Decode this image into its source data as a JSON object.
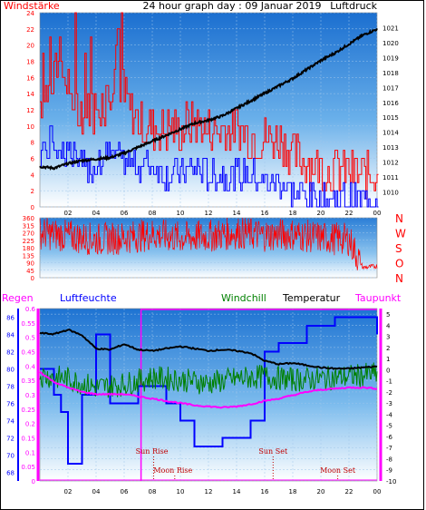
{
  "chart_data": [
    {
      "type": "line",
      "title": "24 hour graph day : 09 Januar 2019",
      "left_label": "Windstärke",
      "right_label": "Luftdruck",
      "x_ticks": [
        "02",
        "04",
        "06",
        "08",
        "10",
        "12",
        "14",
        "16",
        "18",
        "20",
        "22",
        "00"
      ],
      "x_range": [
        0,
        24
      ],
      "y_left": {
        "range": [
          0,
          24
        ],
        "ticks": [
          0,
          2,
          4,
          6,
          8,
          10,
          12,
          14,
          16,
          18,
          20,
          22,
          24
        ]
      },
      "y_right": {
        "range": [
          1009,
          1022
        ],
        "ticks": [
          1010,
          1011,
          1012,
          1013,
          1014,
          1015,
          1016,
          1017,
          1018,
          1019,
          1020,
          1021
        ]
      },
      "series": [
        {
          "name": "",
          "color": "#ff0000",
          "axis": "left",
          "x": [
            0,
            1,
            2,
            3,
            4,
            5,
            6,
            7,
            8,
            9,
            10,
            11,
            12,
            13,
            14,
            15,
            16,
            17,
            18,
            19,
            20,
            21,
            22,
            23,
            24
          ],
          "values": [
            12,
            16,
            14,
            11,
            11,
            14,
            13,
            10,
            9,
            9,
            9,
            10,
            9,
            9,
            9,
            8,
            8,
            8,
            6,
            5,
            4,
            4,
            4,
            3,
            4
          ]
        },
        {
          "name": "",
          "color": "#0000ff",
          "axis": "left",
          "x": [
            0,
            1,
            2,
            3,
            4,
            5,
            6,
            7,
            8,
            9,
            10,
            11,
            12,
            13,
            14,
            15,
            16,
            17,
            18,
            19,
            20,
            21,
            22,
            23,
            24
          ],
          "values": [
            7,
            8,
            7,
            5,
            5,
            7,
            6,
            5,
            5,
            4,
            4,
            5,
            4,
            4,
            4,
            4,
            3,
            3,
            2,
            1,
            1,
            1,
            1,
            1,
            1
          ]
        },
        {
          "name": "",
          "color": "#000000",
          "axis": "right",
          "x": [
            0,
            1,
            2,
            3,
            4,
            5,
            6,
            7,
            8,
            9,
            10,
            11,
            12,
            13,
            14,
            15,
            16,
            17,
            18,
            19,
            20,
            21,
            22,
            23,
            24
          ],
          "values": [
            1011.7,
            1011.6,
            1011.9,
            1012.1,
            1012.2,
            1012.3,
            1012.6,
            1013.0,
            1013.4,
            1013.8,
            1014.2,
            1014.6,
            1014.8,
            1015.1,
            1015.6,
            1016.1,
            1016.6,
            1017.1,
            1017.6,
            1018.2,
            1018.8,
            1019.3,
            1019.9,
            1020.5,
            1020.9
          ]
        }
      ]
    },
    {
      "type": "line",
      "title": "",
      "right_labels": [
        "N",
        "W",
        "S",
        "O",
        "N"
      ],
      "x_range": [
        0,
        24
      ],
      "y_left": {
        "range": [
          0,
          360
        ],
        "ticks": [
          0,
          45,
          90,
          135,
          180,
          225,
          270,
          315,
          360
        ]
      },
      "series": [
        {
          "name": "",
          "color": "#ff0000",
          "axis": "left",
          "x": [
            0,
            2,
            4,
            6,
            8,
            10,
            12,
            14,
            16,
            18,
            20,
            22,
            23,
            24
          ],
          "values": [
            270,
            250,
            230,
            240,
            260,
            240,
            250,
            270,
            255,
            260,
            240,
            230,
            60,
            70
          ]
        }
      ]
    },
    {
      "type": "line",
      "title": "",
      "labels": [
        "Regen",
        "Luftfeuchte",
        "Windchill",
        "Temperatur",
        "Taupunkt"
      ],
      "x_ticks": [
        "02",
        "04",
        "06",
        "08",
        "10",
        "12",
        "14",
        "16",
        "18",
        "20",
        "22",
        "00"
      ],
      "x_range": [
        0,
        24
      ],
      "y_regen": {
        "range": [
          0,
          0.6
        ],
        "ticks": [
          "0",
          "0.05",
          "0.1",
          "0.15",
          "0.2",
          "0.25",
          "0.3",
          "0.35",
          "0.4",
          "0.45",
          "0.5",
          "0.55",
          "0.6"
        ]
      },
      "y_humidity": {
        "range": [
          67,
          87
        ],
        "ticks": [
          68,
          70,
          72,
          74,
          76,
          78,
          80,
          82,
          84,
          86
        ]
      },
      "y_temp": {
        "range": [
          -10,
          5.5
        ],
        "ticks": [
          -10,
          -9,
          -8,
          -7,
          -6,
          -5,
          -4,
          -3,
          -2,
          -1,
          0,
          1,
          2,
          3,
          4,
          5
        ]
      },
      "series": [
        {
          "name": "Luftfeuchte",
          "color": "#0000ff",
          "axis": "humidity",
          "x": [
            0,
            1,
            1.5,
            2,
            3,
            4,
            5,
            6,
            7,
            8,
            9,
            10,
            11,
            12,
            13,
            14,
            15,
            16,
            17,
            18,
            19,
            20,
            21,
            22,
            23,
            24
          ],
          "values": [
            80,
            77,
            75,
            69,
            77,
            84,
            76,
            76,
            78,
            78,
            76,
            74,
            71,
            71,
            72,
            72,
            74,
            82,
            83,
            83,
            85,
            85,
            86,
            86,
            86,
            84
          ]
        },
        {
          "name": "Windchill",
          "color": "#008000",
          "axis": "temp",
          "x": [
            0,
            2,
            4,
            6,
            8,
            10,
            12,
            14,
            16,
            18,
            20,
            22,
            24
          ],
          "values": [
            -0.5,
            -0.8,
            -1.6,
            -1.3,
            -0.7,
            -0.9,
            -1.2,
            -0.8,
            -0.6,
            -0.9,
            -0.8,
            -0.6,
            -0.4
          ]
        },
        {
          "name": "Temperatur",
          "color": "#000000",
          "axis": "temp",
          "x": [
            0,
            1,
            2,
            3,
            4,
            5,
            6,
            7,
            8,
            9,
            10,
            11,
            12,
            13,
            14,
            15,
            16,
            17,
            18,
            19,
            20,
            21,
            22,
            23,
            24
          ],
          "values": [
            3.3,
            3.2,
            3.6,
            3.1,
            1.9,
            1.8,
            2.3,
            1.8,
            1.7,
            1.9,
            2.1,
            1.9,
            1.7,
            1.8,
            1.7,
            1.5,
            0.8,
            0.5,
            0.6,
            0.4,
            0.2,
            0.1,
            0.1,
            0.2,
            0.3
          ]
        },
        {
          "name": "Taupunkt",
          "color": "#ff00ff",
          "axis": "temp",
          "x": [
            0,
            1,
            2,
            3,
            4,
            5,
            6,
            7,
            8,
            9,
            10,
            11,
            12,
            13,
            14,
            15,
            16,
            17,
            18,
            19,
            20,
            21,
            22,
            23,
            24
          ],
          "values": [
            -0.2,
            -1.1,
            -1.6,
            -2.0,
            -2.2,
            -2.2,
            -2.2,
            -2.4,
            -2.6,
            -2.8,
            -3.0,
            -3.2,
            -3.3,
            -3.4,
            -3.3,
            -3.1,
            -2.8,
            -2.6,
            -2.3,
            -2.0,
            -1.8,
            -1.7,
            -1.6,
            -1.6,
            -1.7
          ]
        },
        {
          "name": "Regen",
          "color": "#ff00ff",
          "axis": "regen",
          "x": [
            0,
            24
          ],
          "values": [
            0,
            0
          ]
        }
      ],
      "sun_moon": [
        {
          "label": "Sun Rise",
          "hour": 8.1
        },
        {
          "label": "Moon Rise",
          "hour": 9.6
        },
        {
          "label": "Sun Set",
          "hour": 16.6
        },
        {
          "label": "Moon Set",
          "hour": 21.2
        }
      ]
    }
  ]
}
